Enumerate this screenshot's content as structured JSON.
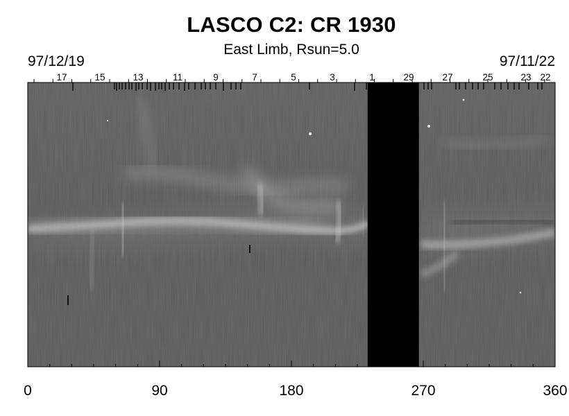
{
  "chart_data": {
    "type": "heatmap",
    "title": "LASCO C2: CR 1930",
    "subtitle": "East Limb, Rsun=5.0",
    "date_start": "97/12/19",
    "date_end": "97/11/22",
    "xlim": [
      0,
      360
    ],
    "x_ticks": [
      0,
      90,
      180,
      270,
      360
    ],
    "x_tick_labels": [
      "0",
      "90",
      "180",
      "270",
      "360"
    ],
    "top_axis_day_labels": [
      "17",
      "15",
      "13",
      "11",
      "9",
      "7",
      "5",
      "3",
      "1",
      "29",
      "27",
      "25",
      "23",
      "22"
    ],
    "data_gap": {
      "x_start": 232,
      "x_end": 267
    },
    "colormap": "grayscale",
    "colors": {
      "background_gray": "#5b5b5b",
      "gap": "#000000",
      "streamer": "#bdbdbd"
    }
  }
}
